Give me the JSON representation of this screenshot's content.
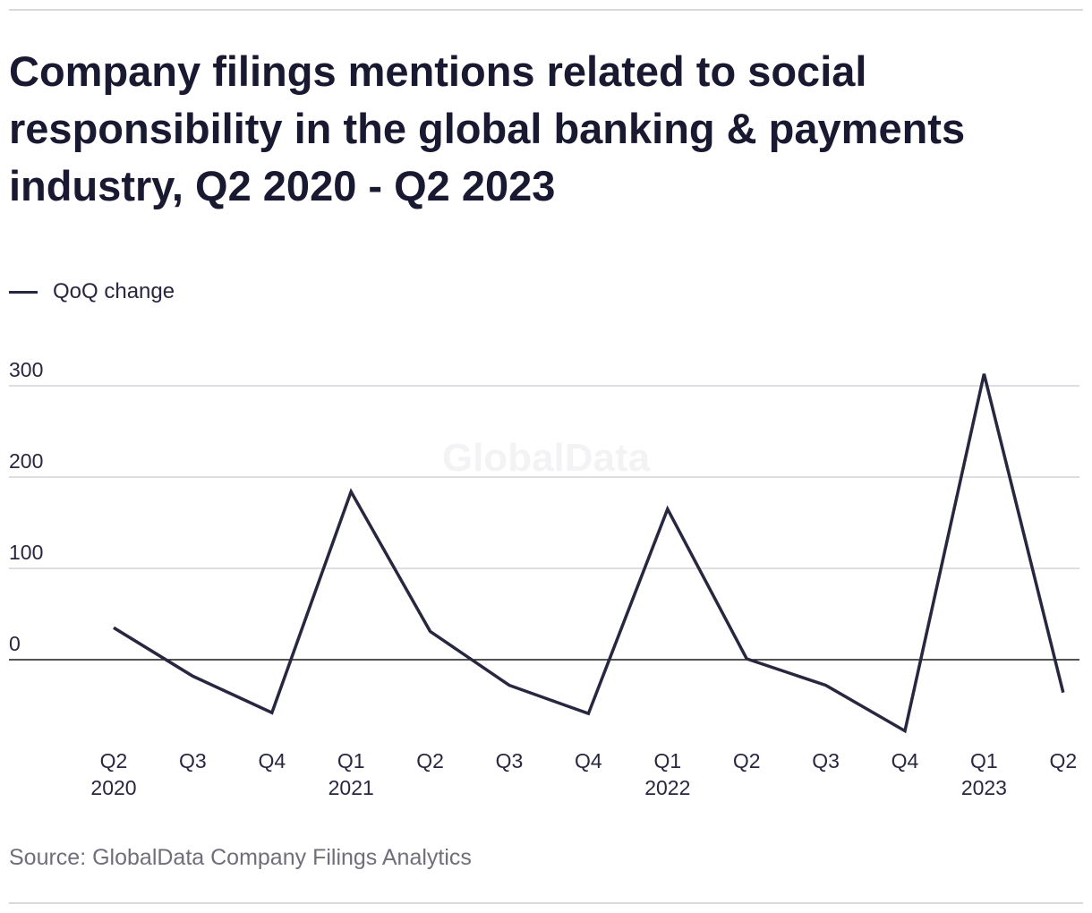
{
  "title": "Company filings mentions related to social responsibility in the global banking & payments industry, Q2 2020 - Q2 2023",
  "source": "Source: GlobalData Company Filings Analytics",
  "watermark": "GlobalData",
  "colors": {
    "line": "#27273f",
    "grid": "#d4d4d8",
    "zero": "#1a1a1a",
    "text": "#191931"
  },
  "chart_data": {
    "type": "line",
    "title": "Company filings mentions related to social responsibility in the global banking & payments industry, Q2 2020 - Q2 2023",
    "xlabel": "",
    "ylabel": "",
    "ylim": [
      -100,
      330
    ],
    "yticks": [
      0,
      100,
      200,
      300
    ],
    "grid": true,
    "legend_position": "top-left",
    "categories": [
      "Q2 2020",
      "Q3 2020",
      "Q4 2020",
      "Q1 2021",
      "Q2 2021",
      "Q3 2021",
      "Q4 2021",
      "Q1 2022",
      "Q2 2022",
      "Q3 2022",
      "Q4 2022",
      "Q1 2023",
      "Q2 2023"
    ],
    "tick_labels": [
      [
        "Q2",
        "2020"
      ],
      [
        "Q3",
        ""
      ],
      [
        "Q4",
        ""
      ],
      [
        "Q1",
        "2021"
      ],
      [
        "Q2",
        ""
      ],
      [
        "Q3",
        ""
      ],
      [
        "Q4",
        ""
      ],
      [
        "Q1",
        "2022"
      ],
      [
        "Q2",
        ""
      ],
      [
        "Q3",
        ""
      ],
      [
        "Q4",
        ""
      ],
      [
        "Q1",
        "2023"
      ],
      [
        "Q2",
        ""
      ]
    ],
    "series": [
      {
        "name": "QoQ change",
        "values": [
          35,
          -18,
          -58,
          184,
          31,
          -28,
          -59,
          165,
          1,
          -28,
          -78,
          313,
          -36
        ]
      }
    ]
  }
}
